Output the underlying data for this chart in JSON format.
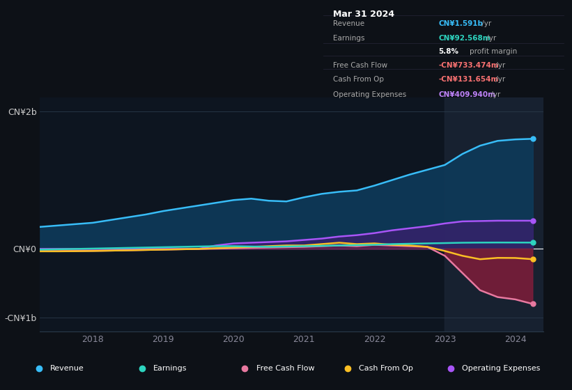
{
  "background_color": "#0d1117",
  "plot_bg_color": "#0d1520",
  "title": "Mar 31 2024",
  "tooltip": {
    "Revenue": {
      "value": "CN¥1.591b /yr",
      "color": "#38bdf8"
    },
    "Earnings": {
      "value": "CN¥92.568m /yr",
      "color": "#2dd4bf"
    },
    "profit_margin": "5.8% profit margin",
    "Free Cash Flow": {
      "value": "-CN¥733.474m /yr",
      "color": "#f87171"
    },
    "Cash From Op": {
      "value": "-CN¥131.654m /yr",
      "color": "#f87171"
    },
    "Operating Expenses": {
      "value": "CN¥409.940m /yr",
      "color": "#c084fc"
    }
  },
  "yticks": [
    "CN¥2b",
    "CN¥0",
    "-CN¥1b"
  ],
  "ytick_vals": [
    2000000000,
    0,
    -1000000000
  ],
  "xticks": [
    "2018",
    "2019",
    "2020",
    "2021",
    "2022",
    "2023",
    "2024"
  ],
  "highlight_x_start": 2023.0,
  "series": {
    "revenue": {
      "color": "#38bdf8",
      "fill_color": "#0e3a5a",
      "label": "Revenue",
      "data_x": [
        2017.25,
        2017.5,
        2017.75,
        2018.0,
        2018.25,
        2018.5,
        2018.75,
        2019.0,
        2019.25,
        2019.5,
        2019.75,
        2020.0,
        2020.25,
        2020.5,
        2020.75,
        2021.0,
        2021.25,
        2021.5,
        2021.75,
        2022.0,
        2022.25,
        2022.5,
        2022.75,
        2023.0,
        2023.25,
        2023.5,
        2023.75,
        2024.0,
        2024.25
      ],
      "data_y": [
        320000000,
        340000000,
        360000000,
        380000000,
        420000000,
        460000000,
        500000000,
        550000000,
        590000000,
        630000000,
        670000000,
        710000000,
        730000000,
        700000000,
        690000000,
        750000000,
        800000000,
        830000000,
        850000000,
        920000000,
        1000000000,
        1080000000,
        1150000000,
        1220000000,
        1380000000,
        1500000000,
        1570000000,
        1591000000,
        1600000000
      ]
    },
    "earnings": {
      "color": "#2dd4bf",
      "label": "Earnings",
      "data_x": [
        2017.25,
        2017.5,
        2017.75,
        2018.0,
        2018.25,
        2018.5,
        2018.75,
        2019.0,
        2019.25,
        2019.5,
        2019.75,
        2020.0,
        2020.25,
        2020.5,
        2020.75,
        2021.0,
        2021.25,
        2021.5,
        2021.75,
        2022.0,
        2022.25,
        2022.5,
        2022.75,
        2023.0,
        2023.25,
        2023.5,
        2023.75,
        2024.0,
        2024.25
      ],
      "data_y": [
        -10000000,
        -5000000,
        0,
        5000000,
        10000000,
        15000000,
        20000000,
        25000000,
        30000000,
        35000000,
        40000000,
        40000000,
        35000000,
        30000000,
        35000000,
        40000000,
        45000000,
        50000000,
        55000000,
        60000000,
        70000000,
        75000000,
        80000000,
        85000000,
        90000000,
        92000000,
        93000000,
        92568000,
        92000000
      ]
    },
    "free_cash_flow": {
      "color": "#e879a0",
      "fill_color": "#7f1d3a",
      "label": "Free Cash Flow",
      "data_x": [
        2017.25,
        2017.5,
        2017.75,
        2018.0,
        2018.25,
        2018.5,
        2018.75,
        2019.0,
        2019.25,
        2019.5,
        2019.75,
        2020.0,
        2020.25,
        2020.5,
        2020.75,
        2021.0,
        2021.25,
        2021.5,
        2021.75,
        2022.0,
        2022.25,
        2022.5,
        2022.75,
        2023.0,
        2023.25,
        2023.5,
        2023.75,
        2024.0,
        2024.25
      ],
      "data_y": [
        -30000000,
        -32000000,
        -30000000,
        -28000000,
        -25000000,
        -20000000,
        -15000000,
        -10000000,
        -5000000,
        0,
        5000000,
        10000000,
        15000000,
        20000000,
        25000000,
        30000000,
        40000000,
        50000000,
        40000000,
        60000000,
        50000000,
        40000000,
        30000000,
        -100000000,
        -350000000,
        -600000000,
        -700000000,
        -733474000,
        -800000000
      ]
    },
    "cash_from_op": {
      "color": "#fbbf24",
      "label": "Cash From Op",
      "data_x": [
        2017.25,
        2017.5,
        2017.75,
        2018.0,
        2018.25,
        2018.5,
        2018.75,
        2019.0,
        2019.25,
        2019.5,
        2019.75,
        2020.0,
        2020.25,
        2020.5,
        2020.75,
        2021.0,
        2021.25,
        2021.5,
        2021.75,
        2022.0,
        2022.25,
        2022.5,
        2022.75,
        2023.0,
        2023.25,
        2023.5,
        2023.75,
        2024.0,
        2024.25
      ],
      "data_y": [
        -35000000,
        -35000000,
        -33000000,
        -30000000,
        -25000000,
        -20000000,
        -15000000,
        -10000000,
        -5000000,
        0,
        10000000,
        20000000,
        30000000,
        40000000,
        50000000,
        50000000,
        70000000,
        90000000,
        70000000,
        80000000,
        60000000,
        50000000,
        30000000,
        -30000000,
        -100000000,
        -150000000,
        -130000000,
        -131654000,
        -150000000
      ]
    },
    "operating_expenses": {
      "color": "#a855f7",
      "fill_color": "#3b1f6e",
      "label": "Operating Expenses",
      "data_x": [
        2017.25,
        2017.5,
        2017.75,
        2018.0,
        2018.25,
        2018.5,
        2018.75,
        2019.0,
        2019.25,
        2019.5,
        2019.75,
        2020.0,
        2020.25,
        2020.5,
        2020.75,
        2021.0,
        2021.25,
        2021.5,
        2021.75,
        2022.0,
        2022.25,
        2022.5,
        2022.75,
        2023.0,
        2023.25,
        2023.5,
        2023.75,
        2024.0,
        2024.25
      ],
      "data_y": [
        0,
        0,
        0,
        0,
        0,
        0,
        0,
        0,
        0,
        0,
        50000000,
        80000000,
        90000000,
        100000000,
        110000000,
        130000000,
        150000000,
        180000000,
        200000000,
        230000000,
        270000000,
        300000000,
        330000000,
        370000000,
        400000000,
        405000000,
        410000000,
        409940000,
        410000000
      ]
    }
  },
  "legend": [
    {
      "label": "Revenue",
      "color": "#38bdf8"
    },
    {
      "label": "Earnings",
      "color": "#2dd4bf"
    },
    {
      "label": "Free Cash Flow",
      "color": "#e879a0"
    },
    {
      "label": "Cash From Op",
      "color": "#fbbf24"
    },
    {
      "label": "Operating Expenses",
      "color": "#a855f7"
    }
  ],
  "ylim": [
    -1200000000,
    2200000000
  ],
  "xlim": [
    2017.25,
    2024.4
  ]
}
